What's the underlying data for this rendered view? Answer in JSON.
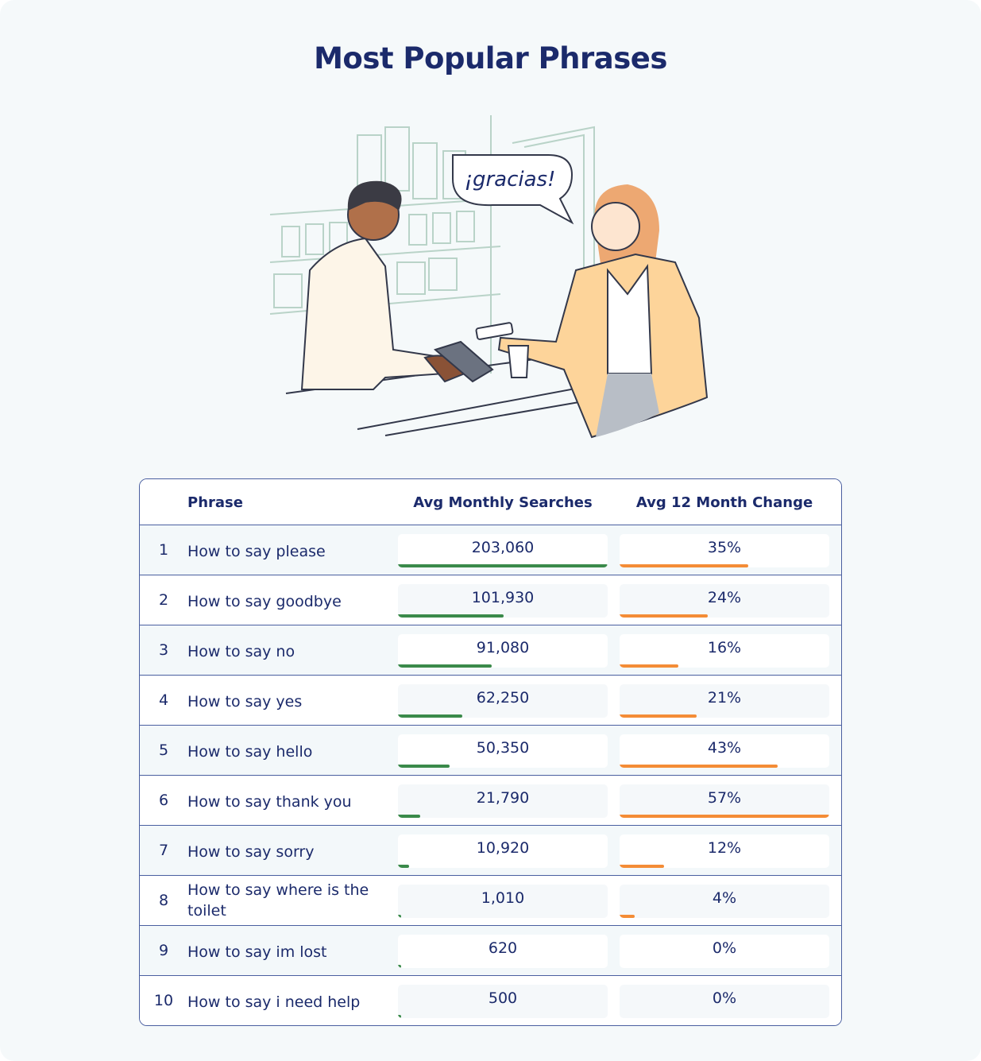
{
  "title": "Most Popular Phrases",
  "illustration": {
    "speech_bubble": "¡gracias!"
  },
  "colors": {
    "title": "#1b2a6b",
    "searches_bar": "#3a8a4a",
    "change_bar": "#f48c36",
    "border": "#4a5fa0"
  },
  "chart_data": {
    "type": "table",
    "columns": [
      "",
      "Phrase",
      "Avg Monthly Searches",
      "Avg 12 Month Change"
    ],
    "rows": [
      {
        "rank": "1",
        "phrase": "How to say please",
        "searches": 203060,
        "searches_label": "203,060",
        "change": 35,
        "change_label": "35%"
      },
      {
        "rank": "2",
        "phrase": "How to say goodbye",
        "searches": 101930,
        "searches_label": "101,930",
        "change": 24,
        "change_label": "24%"
      },
      {
        "rank": "3",
        "phrase": "How to say no",
        "searches": 91080,
        "searches_label": "91,080",
        "change": 16,
        "change_label": "16%"
      },
      {
        "rank": "4",
        "phrase": "How to say yes",
        "searches": 62250,
        "searches_label": "62,250",
        "change": 21,
        "change_label": "21%"
      },
      {
        "rank": "5",
        "phrase": "How to say hello",
        "searches": 50350,
        "searches_label": "50,350",
        "change": 43,
        "change_label": "43%"
      },
      {
        "rank": "6",
        "phrase": "How to say thank you",
        "searches": 21790,
        "searches_label": "21,790",
        "change": 57,
        "change_label": "57%"
      },
      {
        "rank": "7",
        "phrase": "How to say sorry",
        "searches": 10920,
        "searches_label": "10,920",
        "change": 12,
        "change_label": "12%"
      },
      {
        "rank": "8",
        "phrase": "How to say where is the toilet",
        "searches": 1010,
        "searches_label": "1,010",
        "change": 4,
        "change_label": "4%"
      },
      {
        "rank": "9",
        "phrase": "How to say im lost",
        "searches": 620,
        "searches_label": "620",
        "change": 0,
        "change_label": "0%"
      },
      {
        "rank": "10",
        "phrase": "How to say i need help",
        "searches": 500,
        "searches_label": "500",
        "change": 0,
        "change_label": "0%"
      }
    ]
  }
}
